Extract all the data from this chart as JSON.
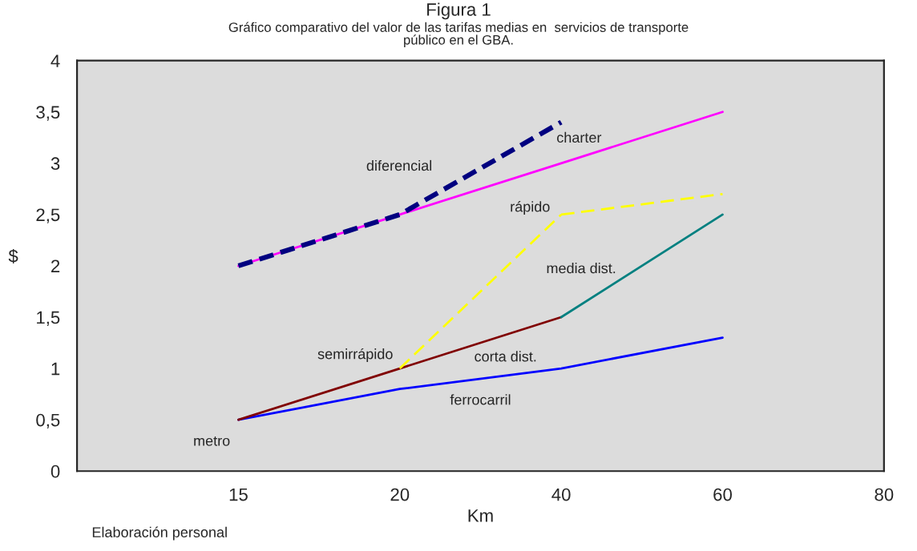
{
  "chart_data": {
    "type": "line",
    "title": "Figura 1",
    "subtitle": "Gráfico comparativo del valor de las tarifas medias en  servicios de transporte\npúblico en el GBA.",
    "xlabel": "Km",
    "ylabel": "$",
    "categories": [
      null,
      "15",
      "20",
      "40",
      "60",
      "80"
    ],
    "ylim": [
      0,
      4
    ],
    "yticks": [
      0,
      {
        "value": 0.5,
        "label": "0,5"
      },
      1,
      {
        "value": 1.5,
        "label": "1,5"
      },
      2,
      {
        "value": 2.5,
        "label": "2,5"
      },
      3,
      {
        "value": 3.5,
        "label": "3,5"
      },
      4
    ],
    "grid": false,
    "legend": false,
    "marker": "none",
    "series": [
      {
        "name": "ferrocarril",
        "color": "#0000ff",
        "values": [
          null,
          0.5,
          0.8,
          1.0,
          1.3,
          null
        ]
      },
      {
        "name": "corta dist.",
        "color": "#800000",
        "values": [
          null,
          0.5,
          1.0,
          1.5,
          null,
          null
        ]
      },
      {
        "name": "media dist.",
        "color": "#008080",
        "values": [
          null,
          null,
          null,
          1.5,
          2.5,
          null
        ]
      },
      {
        "name": "semirrápido",
        "color": "#ffff00",
        "line_style": "dashed",
        "values": [
          null,
          null,
          1.0,
          2.5,
          null,
          null
        ]
      },
      {
        "name": "rápido",
        "color": "#ffff00",
        "line_style": "dashed",
        "values": [
          null,
          null,
          null,
          2.5,
          2.7,
          null
        ]
      },
      {
        "name": "charter",
        "color": "#ff00ff",
        "values": [
          null,
          2.0,
          2.5,
          3.0,
          3.5,
          null
        ]
      },
      {
        "name": "diferencial",
        "color": "#000080",
        "line_style": "dashed",
        "values": [
          null,
          2.0,
          2.5,
          3.4,
          null,
          null
        ]
      }
    ],
    "annotations": [
      {
        "text": "metro",
        "x": "15",
        "y": 0.5
      },
      "Elaboración personal"
    ]
  }
}
